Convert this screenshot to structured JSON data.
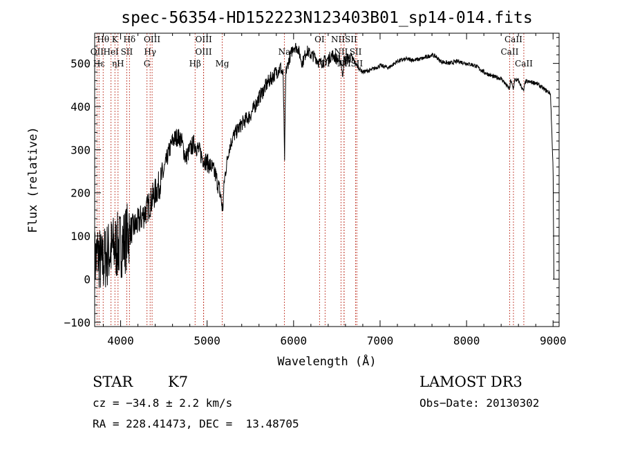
{
  "chart_data": {
    "type": "line",
    "title": "spec-56354-HD152223N123403B01_sp14-014.fits",
    "xlabel": "Wavelength (Å)",
    "ylabel": "Flux (relative)",
    "xlim": [
      3700,
      9070
    ],
    "ylim": [
      -110,
      570
    ],
    "x_ticks": [
      "4000",
      "5000",
      "6000",
      "7000",
      "8000",
      "9000"
    ],
    "y_ticks": [
      "−100",
      "0",
      "100",
      "200",
      "300",
      "400",
      "500"
    ],
    "grid": false,
    "series": [
      {
        "color": "#000000",
        "anchors": [
          [
            3700,
            40
          ],
          [
            3740,
            60
          ],
          [
            3780,
            30
          ],
          [
            3820,
            50
          ],
          [
            3860,
            60
          ],
          [
            3900,
            70
          ],
          [
            3950,
            75
          ],
          [
            4000,
            80
          ],
          [
            4050,
            90
          ],
          [
            4100,
            110
          ],
          [
            4150,
            120
          ],
          [
            4200,
            130
          ],
          [
            4250,
            145
          ],
          [
            4300,
            160
          ],
          [
            4350,
            180
          ],
          [
            4400,
            200
          ],
          [
            4450,
            220
          ],
          [
            4500,
            250
          ],
          [
            4550,
            290
          ],
          [
            4600,
            320
          ],
          [
            4650,
            330
          ],
          [
            4700,
            325
          ],
          [
            4750,
            280
          ],
          [
            4800,
            300
          ],
          [
            4850,
            315
          ],
          [
            4900,
            300
          ],
          [
            4950,
            280
          ],
          [
            5000,
            270
          ],
          [
            5050,
            260
          ],
          [
            5100,
            240
          ],
          [
            5150,
            200
          ],
          [
            5180,
            160
          ],
          [
            5200,
            230
          ],
          [
            5250,
            300
          ],
          [
            5300,
            330
          ],
          [
            5400,
            360
          ],
          [
            5500,
            380
          ],
          [
            5600,
            420
          ],
          [
            5700,
            455
          ],
          [
            5800,
            480
          ],
          [
            5850,
            490
          ],
          [
            5880,
            470
          ],
          [
            5895,
            270
          ],
          [
            5910,
            480
          ],
          [
            5950,
            510
          ],
          [
            6000,
            540
          ],
          [
            6050,
            535
          ],
          [
            6100,
            500
          ],
          [
            6150,
            530
          ],
          [
            6200,
            520
          ],
          [
            6250,
            515
          ],
          [
            6300,
            500
          ],
          [
            6350,
            505
          ],
          [
            6400,
            510
          ],
          [
            6450,
            520
          ],
          [
            6500,
            510
          ],
          [
            6550,
            505
          ],
          [
            6563,
            470
          ],
          [
            6580,
            505
          ],
          [
            6650,
            515
          ],
          [
            6700,
            505
          ],
          [
            6750,
            490
          ],
          [
            6800,
            480
          ],
          [
            6900,
            485
          ],
          [
            7000,
            495
          ],
          [
            7100,
            490
          ],
          [
            7200,
            505
          ],
          [
            7300,
            510
          ],
          [
            7400,
            508
          ],
          [
            7500,
            512
          ],
          [
            7600,
            520
          ],
          [
            7650,
            515
          ],
          [
            7700,
            505
          ],
          [
            7800,
            500
          ],
          [
            7900,
            505
          ],
          [
            8000,
            500
          ],
          [
            8100,
            495
          ],
          [
            8200,
            480
          ],
          [
            8300,
            470
          ],
          [
            8400,
            465
          ],
          [
            8498,
            440
          ],
          [
            8510,
            462
          ],
          [
            8540,
            440
          ],
          [
            8555,
            462
          ],
          [
            8600,
            460
          ],
          [
            8660,
            435
          ],
          [
            8680,
            458
          ],
          [
            8800,
            455
          ],
          [
            8900,
            440
          ],
          [
            8970,
            430
          ],
          [
            9000,
            260
          ],
          [
            9010,
            0
          ]
        ]
      }
    ],
    "lines": [
      {
        "label": "Hθ",
        "x": 3798,
        "row": 0
      },
      {
        "label": "K",
        "x": 3934,
        "row": 0
      },
      {
        "label": "Hδ",
        "x": 4102,
        "row": 0
      },
      {
        "label": "OIII",
        "x": 4364,
        "row": 0
      },
      {
        "label": "OIII",
        "x": 4960,
        "row": 0
      },
      {
        "label": "OI",
        "x": 6300,
        "row": 0
      },
      {
        "label": "NIISII",
        "x": 6584,
        "row": 0
      },
      {
        "label": "CaII",
        "x": 8542,
        "row": 0
      },
      {
        "label": "OII",
        "x": 3727,
        "row": 1
      },
      {
        "label": "HeI",
        "x": 3889,
        "row": 1
      },
      {
        "label": "SII",
        "x": 4071,
        "row": 1
      },
      {
        "label": "Hγ",
        "x": 4341,
        "row": 1
      },
      {
        "label": "OIII",
        "x": 4959,
        "row": 1
      },
      {
        "label": "Na",
        "x": 5893,
        "row": 1
      },
      {
        "label": "NII",
        "x": 6548,
        "row": 1
      },
      {
        "label": "SII",
        "x": 6717,
        "row": 1
      },
      {
        "label": "CaII",
        "x": 8498,
        "row": 1
      },
      {
        "label": "Hε",
        "x": 3750,
        "row": 2
      },
      {
        "label": "ηH",
        "x": 3970,
        "row": 2
      },
      {
        "label": "G",
        "x": 4305,
        "row": 2
      },
      {
        "label": "Hβ",
        "x": 4861,
        "row": 2
      },
      {
        "label": "Mg",
        "x": 5175,
        "row": 2
      },
      {
        "label": "OI",
        "x": 6364,
        "row": 2
      },
      {
        "label": "NII",
        "x": 6583,
        "row": 2
      },
      {
        "label": "SII",
        "x": 6731,
        "row": 2
      },
      {
        "label": "CaII",
        "x": 8662,
        "row": 2
      }
    ]
  },
  "info": {
    "object_type": "STAR",
    "subclass": "K7",
    "survey": "LAMOST DR3",
    "cz": "cz = −34.8 ± 2.2 km/s",
    "obs_date": "Obs−Date: 20130302",
    "coords": "RA = 228.41473, DEC =  13.48705"
  }
}
